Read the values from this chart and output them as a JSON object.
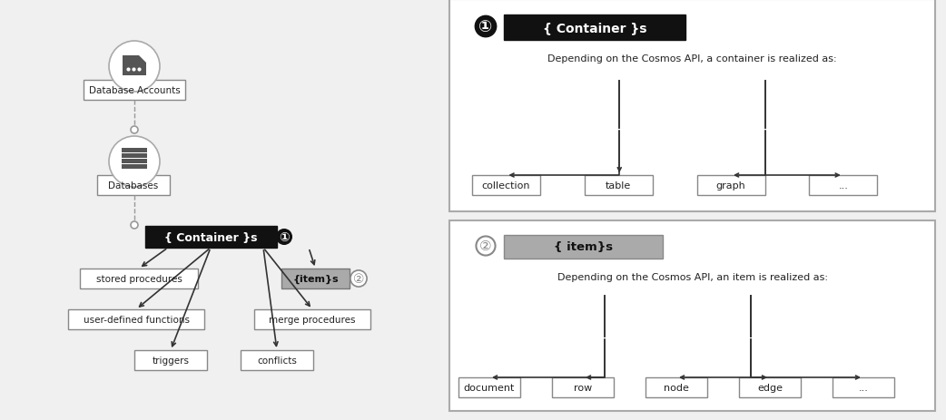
{
  "bg_color": "#f0f0f0",
  "left_panel": {
    "db_accounts_label": "Database Accounts",
    "databases_label": "Databases",
    "container_label": "{ Container }s",
    "items_label": "{item}s",
    "children_left": [
      "stored procedures",
      "user-defined functions",
      "triggers"
    ],
    "children_right": [
      "merge procedures",
      "conflicts"
    ],
    "badge1": "①",
    "badge2": "②"
  },
  "right_top_panel": {
    "title": "{ Container }s",
    "badge": "①",
    "desc": "Depending on the Cosmos API, a container is realized as:",
    "items": [
      "collection",
      "table",
      "graph",
      "..."
    ]
  },
  "right_bottom_panel": {
    "title": "{ item}s",
    "badge": "②",
    "desc": "Depending on the Cosmos API, an item is realized as:",
    "items": [
      "document",
      "row",
      "node",
      "edge",
      "..."
    ]
  }
}
